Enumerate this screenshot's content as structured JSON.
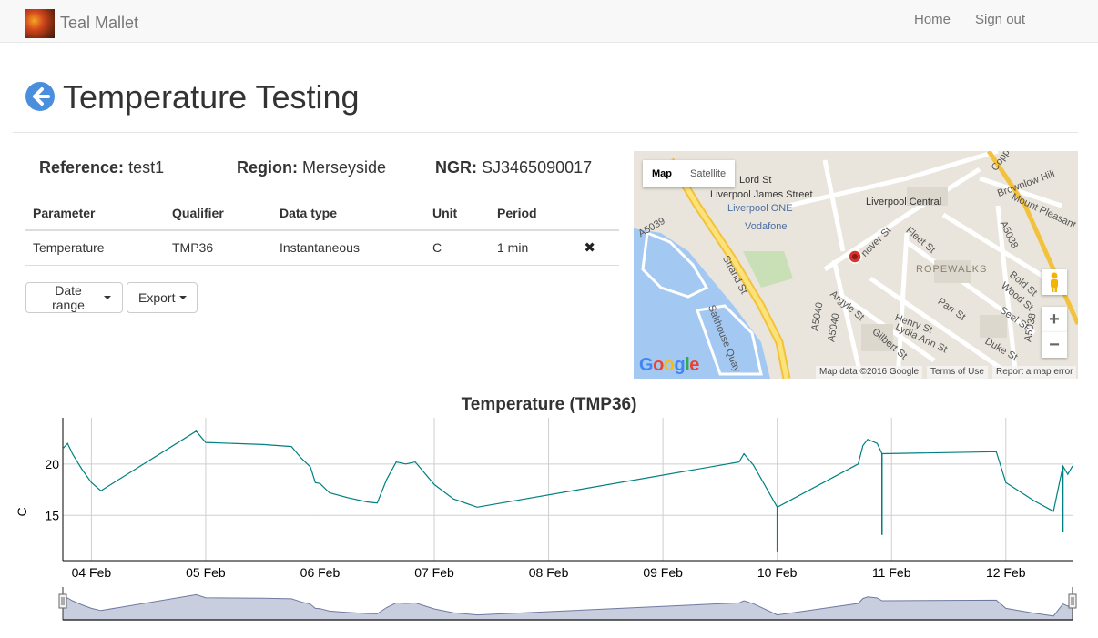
{
  "navbar": {
    "brand": "Teal Mallet",
    "links": [
      "Home",
      "Sign out"
    ]
  },
  "page": {
    "title": "Temperature Testing"
  },
  "site": {
    "reference_label": "Reference:",
    "reference": "test1",
    "region_label": "Region:",
    "region": "Merseyside",
    "ngr_label": "NGR:",
    "ngr": "SJ3465090017"
  },
  "table": {
    "headers": [
      "Parameter",
      "Qualifier",
      "Data type",
      "Unit",
      "Period"
    ],
    "rows": [
      {
        "parameter": "Temperature",
        "qualifier": "TMP36",
        "data_type": "Instantaneous",
        "unit": "C",
        "period": "1 min"
      }
    ]
  },
  "buttons": {
    "date_range": "Date range",
    "export": "Export"
  },
  "map": {
    "types": [
      "Map",
      "Satellite"
    ],
    "labels": {
      "lord_st": "Lord St",
      "liverpool_james_street": "Liverpool James Street",
      "liverpool_one": "Liverpool ONE",
      "vodafone": "Vodafone",
      "liverpool_central": "Liverpool Central",
      "brownlow_hill": "Brownlow Hill",
      "mount_pleasant": "Mount Pleasant",
      "ropewalks": "ROPEWALKS",
      "strand_st": "Strand St",
      "a5039": "A5039",
      "a5038": "A5038",
      "a5040": "A5040",
      "salthouse_quay": "Salthouse Quay",
      "fleet_st": "Fleet St",
      "hanover_st": "nover St",
      "bold_st": "Bold St",
      "wood_st": "Wood St",
      "parr_st": "Parr St",
      "seel_st": "Seel St",
      "henry_st": "Henry St",
      "lydia_ann_st": "Lydia Ann St",
      "argyle_st": "Argyle St",
      "gilbert_st": "Gilbert St",
      "duke_st": "Duke St",
      "copp": "Copp"
    },
    "footer": {
      "data": "Map data ©2016 Google",
      "terms": "Terms of Use",
      "report": "Report a map error"
    },
    "google": "Google"
  },
  "chart_data": {
    "type": "line",
    "title": "Temperature (TMP36)",
    "ylabel": "C",
    "xlabel": "",
    "x_ticks": [
      "04 Feb",
      "05 Feb",
      "06 Feb",
      "07 Feb",
      "08 Feb",
      "09 Feb",
      "10 Feb",
      "11 Feb",
      "12 Feb"
    ],
    "y_ticks": [
      15,
      20
    ],
    "xlim": [
      "03 Feb 18:00",
      "12 Feb 14:00"
    ],
    "ylim": [
      10.6,
      24.5
    ],
    "grid": true,
    "color": "#008080",
    "series": [
      {
        "name": "",
        "points": [
          [
            "03 Feb 18:00",
            21.5
          ],
          [
            "03 Feb 19:00",
            22.0
          ],
          [
            "03 Feb 20:00",
            21.0
          ],
          [
            "03 Feb 22:00",
            19.5
          ],
          [
            "04 Feb 00:00",
            18.2
          ],
          [
            "04 Feb 02:00",
            17.4
          ],
          [
            "04 Feb 22:00",
            23.2
          ],
          [
            "05 Feb 00:00",
            22.1
          ],
          [
            "05 Feb 12:00",
            21.9
          ],
          [
            "05 Feb 18:00",
            21.7
          ],
          [
            "05 Feb 20:00",
            20.6
          ],
          [
            "05 Feb 22:00",
            19.7
          ],
          [
            "05 Feb 23:00",
            18.2
          ],
          [
            "06 Feb 00:00",
            18.1
          ],
          [
            "06 Feb 02:00",
            17.2
          ],
          [
            "06 Feb 06:00",
            16.7
          ],
          [
            "06 Feb 10:00",
            16.3
          ],
          [
            "06 Feb 12:00",
            16.2
          ],
          [
            "06 Feb 14:00",
            18.5
          ],
          [
            "06 Feb 16:00",
            20.2
          ],
          [
            "06 Feb 18:00",
            20.0
          ],
          [
            "06 Feb 20:00",
            20.2
          ],
          [
            "07 Feb 00:00",
            18.0
          ],
          [
            "07 Feb 04:00",
            16.6
          ],
          [
            "07 Feb 09:00",
            15.8
          ],
          [
            "09 Feb 16:00",
            20.2
          ],
          [
            "09 Feb 17:00",
            21.0
          ],
          [
            "09 Feb 19:00",
            19.9
          ],
          [
            "10 Feb 00:00",
            15.8
          ],
          [
            "10 Feb 17:00",
            20.0
          ],
          [
            "10 Feb 18:00",
            21.8
          ],
          [
            "10 Feb 19:00",
            22.4
          ],
          [
            "10 Feb 21:00",
            22.0
          ],
          [
            "10 Feb 22:00",
            21.0
          ],
          [
            "11 Feb 22:00",
            21.2
          ],
          [
            "12 Feb 00:00",
            18.2
          ],
          [
            "12 Feb 06:00",
            16.4
          ],
          [
            "12 Feb 10:00",
            15.4
          ],
          [
            "12 Feb 12:00",
            19.8
          ],
          [
            "12 Feb 13:00",
            19.0
          ],
          [
            "12 Feb 14:00",
            19.8
          ]
        ],
        "spikes": [
          [
            "10 Feb 00:00",
            11.5
          ],
          [
            "10 Feb 22:00",
            13.1
          ],
          [
            "12 Feb 12:00",
            13.4
          ]
        ]
      }
    ]
  }
}
